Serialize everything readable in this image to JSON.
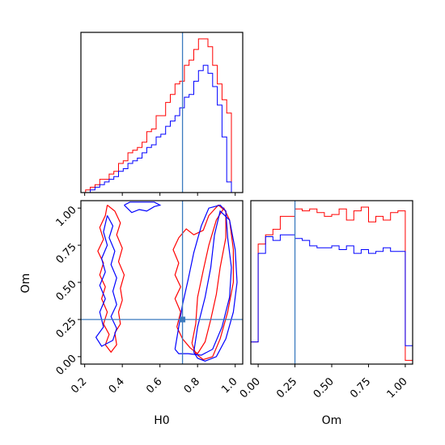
{
  "chart_data": {
    "type": "corner",
    "parameters": [
      "H0",
      "Om"
    ],
    "truths": {
      "H0": 0.72,
      "Om": 0.25
    },
    "truth_color": "#3b7bbf",
    "axis_labels": {
      "H0": "H0",
      "Om": "Om"
    },
    "h0_ticks": [
      "0.2",
      "0.4",
      "0.6",
      "0.8",
      "1.0"
    ],
    "om_ticks": [
      "0.00",
      "0.25",
      "0.50",
      "0.75",
      "1.00"
    ],
    "h0_range": [
      0.18,
      1.04
    ],
    "om_range": [
      -0.05,
      1.05
    ],
    "panels": [
      {
        "type": "histogram",
        "param": "H0",
        "bin_edges": [
          0.18,
          0.205,
          0.23,
          0.255,
          0.28,
          0.305,
          0.33,
          0.355,
          0.38,
          0.405,
          0.43,
          0.455,
          0.48,
          0.505,
          0.53,
          0.555,
          0.58,
          0.605,
          0.63,
          0.655,
          0.68,
          0.705,
          0.73,
          0.755,
          0.78,
          0.805,
          0.83,
          0.855,
          0.88,
          0.905,
          0.93,
          0.955,
          0.98,
          1.005,
          1.03
        ],
        "series": [
          {
            "color": "#ff0000",
            "counts": [
              0,
              1,
              2,
              3,
              5,
              5,
              7,
              8,
              11,
              12,
              15,
              16,
              17,
              19,
              23,
              24,
              29,
              29,
              34,
              37,
              41,
              42,
              48,
              50,
              54,
              58,
              58,
              55,
              48,
              41,
              35,
              30,
              0,
              0
            ]
          },
          {
            "color": "#0000ff",
            "counts": [
              0,
              0,
              1,
              2,
              3,
              4,
              5,
              6,
              8,
              9,
              11,
              12,
              13,
              15,
              17,
              18,
              21,
              22,
              25,
              27,
              29,
              32,
              36,
              37,
              42,
              46,
              48,
              45,
              40,
              33,
              21,
              4,
              0,
              0
            ]
          }
        ]
      },
      {
        "type": "histogram",
        "param": "Om",
        "bin_edges": [
          -0.05,
          0.0,
          0.05,
          0.1,
          0.15,
          0.2,
          0.25,
          0.3,
          0.35,
          0.4,
          0.45,
          0.5,
          0.55,
          0.6,
          0.65,
          0.7,
          0.75,
          0.8,
          0.85,
          0.9,
          0.95,
          1.0,
          1.05
        ],
        "series": [
          {
            "color": "#ff0000",
            "counts": [
              12,
              65,
              70,
              73,
              80,
              80,
              84,
              83,
              84,
              82,
              80,
              81,
              84,
              78,
              83,
              85,
              77,
              80,
              78,
              82,
              83,
              2
            ]
          },
          {
            "color": "#0000ff",
            "counts": [
              12,
              60,
              69,
              67,
              70,
              70,
              68,
              67,
              64,
              63,
              63,
              64,
              62,
              64,
              60,
              62,
              60,
              61,
              63,
              61,
              61,
              10
            ]
          }
        ]
      },
      {
        "type": "contour",
        "x_param": "H0",
        "y_param": "Om",
        "series": [
          {
            "color": "#ff0000",
            "contours": [
              [
                [
                  0.32,
                  1.02
                ],
                [
                  0.36,
                  0.98
                ],
                [
                  0.39,
                  0.9
                ],
                [
                  0.37,
                  0.82
                ],
                [
                  0.4,
                  0.73
                ],
                [
                  0.38,
                  0.64
                ],
                [
                  0.41,
                  0.55
                ],
                [
                  0.39,
                  0.46
                ],
                [
                  0.4,
                  0.38
                ],
                [
                  0.38,
                  0.3
                ],
                [
                  0.39,
                  0.22
                ],
                [
                  0.36,
                  0.16
                ],
                [
                  0.37,
                  0.08
                ],
                [
                  0.34,
                  0.03
                ],
                [
                  0.31,
                  0.08
                ],
                [
                  0.33,
                  0.15
                ],
                [
                  0.3,
                  0.22
                ],
                [
                  0.32,
                  0.3
                ],
                [
                  0.29,
                  0.39
                ],
                [
                  0.31,
                  0.47
                ],
                [
                  0.28,
                  0.55
                ],
                [
                  0.3,
                  0.63
                ],
                [
                  0.27,
                  0.71
                ],
                [
                  0.3,
                  0.79
                ],
                [
                  0.28,
                  0.87
                ],
                [
                  0.31,
                  0.95
                ],
                [
                  0.32,
                  1.02
                ]
              ],
              [
                [
                  0.69,
                  0.2
                ],
                [
                  0.71,
                  0.3
                ],
                [
                  0.68,
                  0.39
                ],
                [
                  0.71,
                  0.47
                ],
                [
                  0.68,
                  0.55
                ],
                [
                  0.7,
                  0.63
                ],
                [
                  0.67,
                  0.72
                ],
                [
                  0.7,
                  0.8
                ],
                [
                  0.74,
                  0.86
                ],
                [
                  0.78,
                  0.82
                ],
                [
                  0.83,
                  0.85
                ],
                [
                  0.86,
                  0.95
                ],
                [
                  0.91,
                  1.02
                ],
                [
                  0.95,
                  0.98
                ],
                [
                  0.95,
                  0.8
                ],
                [
                  0.92,
                  0.6
                ],
                [
                  0.9,
                  0.42
                ],
                [
                  0.87,
                  0.25
                ],
                [
                  0.84,
                  0.1
                ],
                [
                  0.8,
                  0.02
                ],
                [
                  0.76,
                  0.06
                ],
                [
                  0.72,
                  0.12
                ],
                [
                  0.69,
                  0.2
                ]
              ],
              [
                [
                  0.77,
                  0.09
                ],
                [
                  0.79,
                  0.22
                ],
                [
                  0.8,
                  0.4
                ],
                [
                  0.83,
                  0.58
                ],
                [
                  0.86,
                  0.75
                ],
                [
                  0.9,
                  0.92
                ],
                [
                  0.94,
                  1.0
                ],
                [
                  0.97,
                  0.92
                ],
                [
                  0.99,
                  0.72
                ],
                [
                  0.99,
                  0.5
                ],
                [
                  0.96,
                  0.3
                ],
                [
                  0.92,
                  0.12
                ],
                [
                  0.88,
                  0.0
                ],
                [
                  0.83,
                  -0.02
                ],
                [
                  0.79,
                  0.02
                ],
                [
                  0.77,
                  0.09
                ]
              ]
            ]
          },
          {
            "color": "#0000ff",
            "contours": [
              [
                [
                  0.41,
                  1.02
                ],
                [
                  0.45,
                  0.97
                ],
                [
                  0.49,
                  0.99
                ],
                [
                  0.53,
                  0.98
                ],
                [
                  0.57,
                  1.01
                ],
                [
                  0.6,
                  1.02
                ],
                [
                  0.57,
                  1.04
                ],
                [
                  0.5,
                  1.04
                ],
                [
                  0.44,
                  1.04
                ],
                [
                  0.41,
                  1.02
                ]
              ],
              [
                [
                  0.32,
                  0.95
                ],
                [
                  0.35,
                  0.88
                ],
                [
                  0.33,
                  0.8
                ],
                [
                  0.36,
                  0.71
                ],
                [
                  0.34,
                  0.62
                ],
                [
                  0.37,
                  0.53
                ],
                [
                  0.35,
                  0.44
                ],
                [
                  0.37,
                  0.35
                ],
                [
                  0.34,
                  0.27
                ],
                [
                  0.37,
                  0.19
                ],
                [
                  0.35,
                  0.11
                ],
                [
                  0.29,
                  0.07
                ],
                [
                  0.26,
                  0.13
                ],
                [
                  0.3,
                  0.2
                ],
                [
                  0.28,
                  0.3
                ],
                [
                  0.31,
                  0.39
                ],
                [
                  0.28,
                  0.48
                ],
                [
                  0.31,
                  0.57
                ],
                [
                  0.29,
                  0.66
                ],
                [
                  0.32,
                  0.75
                ],
                [
                  0.3,
                  0.84
                ],
                [
                  0.32,
                  0.95
                ]
              ],
              [
                [
                  0.68,
                  0.05
                ],
                [
                  0.7,
                  0.2
                ],
                [
                  0.72,
                  0.35
                ],
                [
                  0.75,
                  0.52
                ],
                [
                  0.78,
                  0.7
                ],
                [
                  0.82,
                  0.88
                ],
                [
                  0.86,
                  1.0
                ],
                [
                  0.92,
                  1.02
                ],
                [
                  0.95,
                  0.98
                ],
                [
                  0.96,
                  0.8
                ],
                [
                  0.98,
                  0.6
                ],
                [
                  0.97,
                  0.4
                ],
                [
                  0.93,
                  0.2
                ],
                [
                  0.88,
                  0.05
                ],
                [
                  0.82,
                  0.01
                ],
                [
                  0.75,
                  0.02
                ],
                [
                  0.7,
                  0.02
                ],
                [
                  0.68,
                  0.05
                ]
              ],
              [
                [
                  0.78,
                  0.03
                ],
                [
                  0.8,
                  0.2
                ],
                [
                  0.84,
                  0.4
                ],
                [
                  0.87,
                  0.6
                ],
                [
                  0.89,
                  0.82
                ],
                [
                  0.92,
                  0.98
                ],
                [
                  0.97,
                  0.92
                ],
                [
                  1.0,
                  0.72
                ],
                [
                  1.01,
                  0.5
                ],
                [
                  0.99,
                  0.3
                ],
                [
                  0.95,
                  0.12
                ],
                [
                  0.9,
                  0.0
                ],
                [
                  0.84,
                  -0.03
                ],
                [
                  0.8,
                  -0.01
                ],
                [
                  0.78,
                  0.03
                ]
              ]
            ]
          }
        ]
      }
    ]
  }
}
